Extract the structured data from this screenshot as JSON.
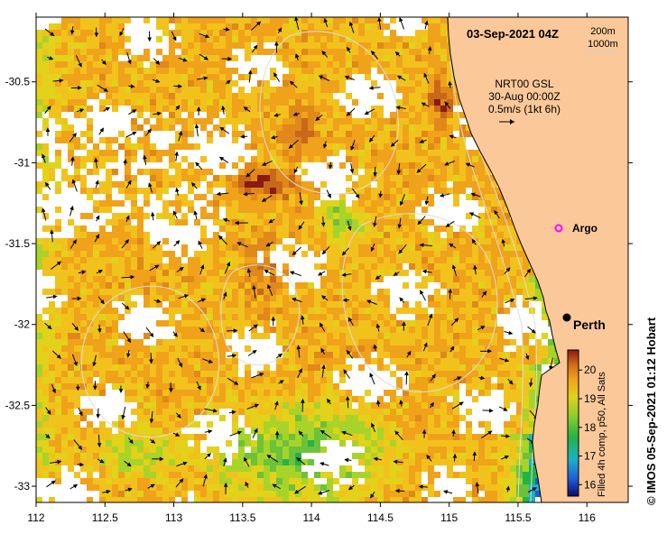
{
  "map": {
    "valid_time": "03-Sep-2021 04Z",
    "isobath_labels": [
      "200m",
      "1000m"
    ],
    "currents": {
      "source": "NRT00 GSL",
      "time": "30-Aug 00:00Z",
      "scale_text": "0.5m/s (1kt 6h)"
    },
    "lon_ticks": [
      "112",
      "112.5",
      "113",
      "113.5",
      "114",
      "114.5",
      "115",
      "115.5",
      "116"
    ],
    "lat_ticks": [
      "-30.5",
      "-31",
      "-31.5",
      "-32",
      "-32.5",
      "-33"
    ],
    "lon_range": [
      112,
      116.3
    ],
    "lat_range": [
      -33.1,
      -30.1
    ],
    "places": [
      {
        "name": "Argo",
        "lon": 115.88,
        "lat": -31.46,
        "marker": "magenta-circle"
      },
      {
        "name": "Perth",
        "lon": 115.86,
        "lat": -31.95,
        "marker": "black-dot"
      }
    ],
    "colorbar": {
      "ticks": [
        "20",
        "19",
        "18",
        "17",
        "16"
      ],
      "min": 15.6,
      "max": 20.7,
      "label": "Filled 4h comp, p50, All Sats"
    },
    "credit": "© IMOS 05-Sep-2021 01:12 Hobart",
    "colors": {
      "land": "#fbc89a",
      "coast": "#000000",
      "isobath": "#dcdcdc"
    }
  }
}
